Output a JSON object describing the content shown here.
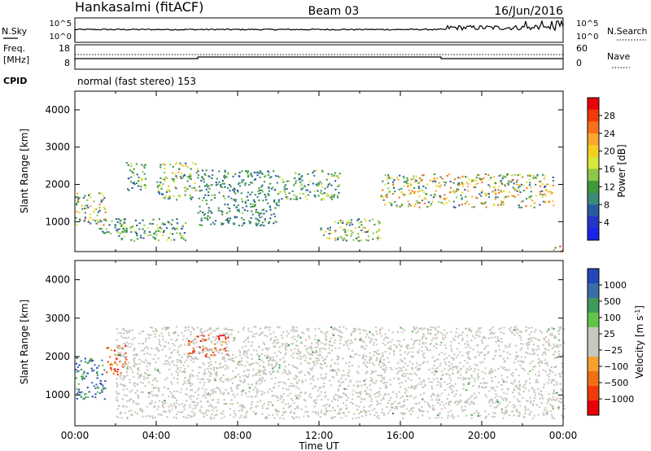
{
  "header": {
    "station": "Hankasalmi (fitACF)",
    "beam": "Beam 03",
    "date": "16/Jun/2016"
  },
  "top_panels": {
    "nsky_label": "N.Sky",
    "nsky_ticks": [
      "10^5",
      "10^0"
    ],
    "nsearch_label": "N.Search",
    "nsearch_ticks": [
      "10^5",
      "10^0"
    ],
    "freq_label": "Freq.",
    "freq_unit": "[MHz]",
    "freq_ticks": [
      "18",
      "8"
    ],
    "nave_label": "Nave",
    "nave_ticks": [
      "60",
      "0"
    ],
    "cpid_label": "CPID",
    "cpid_text": "normal (fast stereo) 153"
  },
  "chart_data": [
    {
      "type": "heatmap",
      "name": "power-panel",
      "ylabel": "Slant Range [km]",
      "xlabel": "",
      "ylim": [
        200,
        4500
      ],
      "yticks": [
        "1000",
        "2000",
        "3000",
        "4000"
      ],
      "colorbar": {
        "label": "Power [dB]",
        "ticks": [
          "28",
          "24",
          "20",
          "16",
          "12",
          "8",
          "4"
        ],
        "colors": [
          "#e8000b",
          "#f03a0a",
          "#f7701b",
          "#fca630",
          "#f6d020",
          "#d6e83a",
          "#8cc84a",
          "#3f9a3a",
          "#3c8a7a",
          "#2a5aa0",
          "#2733c8",
          "#1a22e8"
        ]
      },
      "data_regions": [
        {
          "t_start": "00:00",
          "t_end": "01:30",
          "r_min": 900,
          "r_max": 1800,
          "peak_db": 24
        },
        {
          "t_start": "01:00",
          "t_end": "02:30",
          "r_min": 700,
          "r_max": 1100,
          "peak_db": 12
        },
        {
          "t_start": "02:30",
          "t_end": "03:30",
          "r_min": 1800,
          "r_max": 2600,
          "peak_db": 16
        },
        {
          "t_start": "02:00",
          "t_end": "05:30",
          "r_min": 500,
          "r_max": 1100,
          "peak_db": 16
        },
        {
          "t_start": "04:00",
          "t_end": "06:00",
          "r_min": 1600,
          "r_max": 2600,
          "peak_db": 20
        },
        {
          "t_start": "06:00",
          "t_end": "10:00",
          "r_min": 900,
          "r_max": 2400,
          "peak_db": 12
        },
        {
          "t_start": "10:00",
          "t_end": "13:00",
          "r_min": 1600,
          "r_max": 2400,
          "peak_db": 16
        },
        {
          "t_start": "12:00",
          "t_end": "15:00",
          "r_min": 500,
          "r_max": 1100,
          "peak_db": 20
        },
        {
          "t_start": "15:00",
          "t_end": "23:30",
          "r_min": 1400,
          "r_max": 2300,
          "peak_db": 24
        },
        {
          "t_start": "23:30",
          "t_end": "24:00",
          "r_min": 200,
          "r_max": 400,
          "peak_db": 28
        }
      ]
    },
    {
      "type": "heatmap",
      "name": "velocity-panel",
      "ylabel": "Slant Range [km]",
      "xlabel": "Time UT",
      "ylim": [
        200,
        4500
      ],
      "yticks": [
        "1000",
        "2000",
        "3000",
        "4000"
      ],
      "xticks": [
        "00:00",
        "04:00",
        "08:00",
        "12:00",
        "16:00",
        "20:00",
        "00:00"
      ],
      "colorbar": {
        "label": "Velocity [m s",
        "label_sup": "-1",
        "label_end": "]",
        "ticks": [
          "1000",
          "500",
          "100",
          "25",
          "−25",
          "−100",
          "−500",
          "−1000"
        ],
        "colors": [
          "#2548b8",
          "#3a6ea8",
          "#3f9a5c",
          "#63c44a",
          "#c8c8c0",
          "#c8c8c0",
          "#f6a030",
          "#f07018",
          "#f03a0a",
          "#e8000b"
        ]
      },
      "data_regions": [
        {
          "t_start": "00:00",
          "t_end": "01:30",
          "r_min": 900,
          "r_max": 2000,
          "velocity": 100
        },
        {
          "t_start": "01:30",
          "t_end": "02:30",
          "r_min": 1500,
          "r_max": 2300,
          "velocity": -500
        },
        {
          "t_start": "05:30",
          "t_end": "07:30",
          "r_min": 2000,
          "r_max": 2600,
          "velocity": -500
        },
        {
          "t_start": "02:00",
          "t_end": "24:00",
          "r_min": 400,
          "r_max": 2800,
          "velocity": 0
        }
      ]
    }
  ]
}
